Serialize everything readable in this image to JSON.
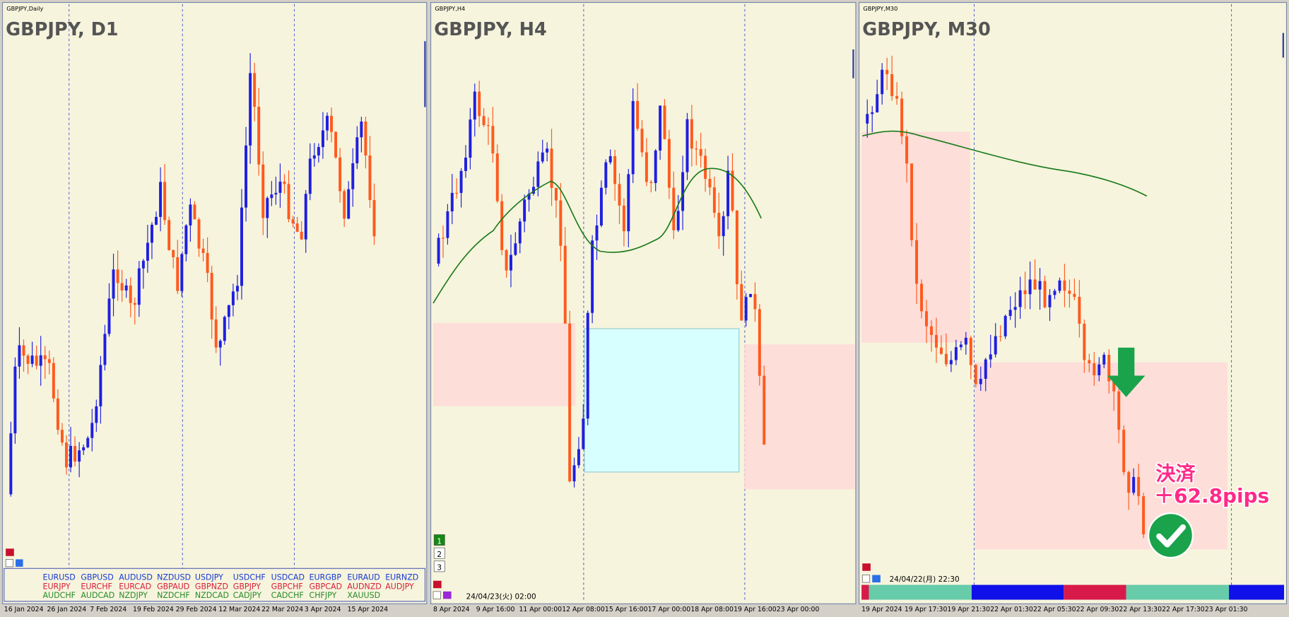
{
  "panels": [
    {
      "tab": "GBPJPY,Daily",
      "title": "GBPJPY, D1",
      "dates": [
        "16 Jan 2024",
        "26 Jan 2024",
        "7 Feb 2024",
        "19 Feb 2024",
        "29 Feb 2024",
        "12 Mar 2024",
        "22 Mar 2024",
        "3 Apr 2024",
        "15 Apr 2024"
      ]
    },
    {
      "tab": "GBPJPY,H4",
      "title": "GBPJPY, H4",
      "dates": [
        "8 Apr 2024",
        "9 Apr 16:00",
        "11 Apr 00:00",
        "12 Apr 08:00",
        "15 Apr 16:00",
        "17 Apr 00:00",
        "18 Apr 08:00",
        "19 Apr 16:00",
        "23 Apr 00:00"
      ],
      "buttons": [
        "1",
        "2",
        "3"
      ],
      "timestamp": "24/04/23(火) 02:00"
    },
    {
      "tab": "GBPJPY,M30",
      "title": "GBPJPY, M30",
      "dates": [
        "19 Apr 2024",
        "19 Apr 17:30",
        "19 Apr 21:30",
        "22 Apr 01:30",
        "22 Apr 05:30",
        "22 Apr 09:30",
        "22 Apr 13:30",
        "22 Apr 17:30",
        "23 Apr 01:30"
      ],
      "timestamp": "24/04/22(月) 22:30",
      "annotation": [
        "決済",
        "＋62.8pips"
      ]
    }
  ],
  "symbols": [
    [
      "EURUSD",
      "GBPUSD",
      "AUDUSD",
      "NZDUSD",
      "USDJPY",
      "USDCHF",
      "USDCAD",
      "EURGBP",
      "EURAUD",
      "EURNZD"
    ],
    [
      "EURJPY",
      "EURCHF",
      "EURCAD",
      "GBPAUD",
      "GBPNZD",
      "GBPJPY",
      "GBPCHF",
      "GBPCAD",
      "AUDNZD",
      "AUDJPY"
    ],
    [
      "AUDCHF",
      "AUDCAD",
      "NZDJPY",
      "NZDCHF",
      "NZDCAD",
      "CADJPY",
      "CADCHF",
      "CHFJPY",
      "XAUUSD"
    ]
  ]
}
